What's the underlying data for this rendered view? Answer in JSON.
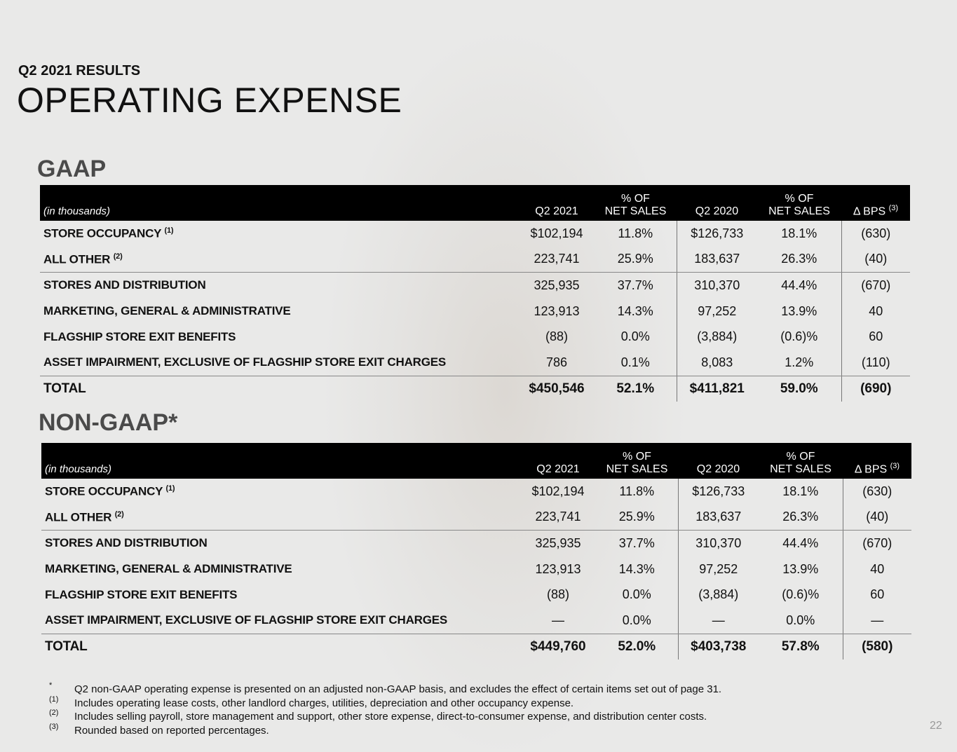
{
  "header": {
    "kicker": "Q2 2021 RESULTS",
    "title": "OPERATING EXPENSE"
  },
  "tables": [
    {
      "title": "GAAP",
      "columns": [
        {
          "label": [
            "(in thousands)"
          ]
        },
        {
          "label": [
            "Q2 2021"
          ]
        },
        {
          "label": [
            "% OF",
            "NET SALES"
          ]
        },
        {
          "label": [
            "Q2 2020"
          ]
        },
        {
          "label": [
            "% OF",
            "NET SALES"
          ]
        },
        {
          "label": [
            "Δ BPS"
          ],
          "note": "(3)"
        }
      ],
      "rows": [
        {
          "label": "STORE OCCUPANCY",
          "note": "(1)",
          "cells": [
            "$102,194",
            "11.8%",
            "$126,733",
            "18.1%",
            "(630)"
          ]
        },
        {
          "label": "ALL OTHER",
          "note": "(2)",
          "cells": [
            "223,741",
            "25.9%",
            "183,637",
            "26.3%",
            "(40)"
          ]
        },
        {
          "label": "STORES AND DISTRIBUTION",
          "cells": [
            "325,935",
            "37.7%",
            "310,370",
            "44.4%",
            "(670)"
          ]
        },
        {
          "label": "MARKETING, GENERAL & ADMINISTRATIVE",
          "cells": [
            "123,913",
            "14.3%",
            "97,252",
            "13.9%",
            "40"
          ]
        },
        {
          "label": "FLAGSHIP STORE EXIT BENEFITS",
          "cells": [
            "(88)",
            "0.0%",
            "(3,884)",
            "(0.6)%",
            "60"
          ]
        },
        {
          "label": "ASSET IMPAIRMENT, EXCLUSIVE OF FLAGSHIP STORE EXIT CHARGES",
          "cells": [
            "786",
            "0.1%",
            "8,083",
            "1.2%",
            "(110)"
          ]
        },
        {
          "label": "TOTAL",
          "cells": [
            "$450,546",
            "52.1%",
            "$411,821",
            "59.0%",
            "(690)"
          ]
        }
      ]
    },
    {
      "title": "NON-GAAP*",
      "columns": [
        {
          "label": [
            "(in thousands)"
          ]
        },
        {
          "label": [
            "Q2 2021"
          ]
        },
        {
          "label": [
            "% OF",
            "NET SALES"
          ]
        },
        {
          "label": [
            "Q2 2020"
          ]
        },
        {
          "label": [
            "% OF",
            "NET SALES"
          ]
        },
        {
          "label": [
            "Δ BPS"
          ],
          "note": "(3)"
        }
      ],
      "rows": [
        {
          "label": "STORE OCCUPANCY",
          "note": "(1)",
          "cells": [
            "$102,194",
            "11.8%",
            "$126,733",
            "18.1%",
            "(630)"
          ]
        },
        {
          "label": "ALL OTHER",
          "note": "(2)",
          "cells": [
            "223,741",
            "25.9%",
            "183,637",
            "26.3%",
            "(40)"
          ]
        },
        {
          "label": "STORES AND DISTRIBUTION",
          "cells": [
            "325,935",
            "37.7%",
            "310,370",
            "44.4%",
            "(670)"
          ]
        },
        {
          "label": "MARKETING, GENERAL & ADMINISTRATIVE",
          "cells": [
            "123,913",
            "14.3%",
            "97,252",
            "13.9%",
            "40"
          ]
        },
        {
          "label": "FLAGSHIP STORE EXIT BENEFITS",
          "cells": [
            "(88)",
            "0.0%",
            "(3,884)",
            "(0.6)%",
            "60"
          ]
        },
        {
          "label": "ASSET IMPAIRMENT, EXCLUSIVE OF FLAGSHIP STORE EXIT CHARGES",
          "cells": [
            "—",
            "0.0%",
            "—",
            "0.0%",
            "—"
          ]
        },
        {
          "label": "TOTAL",
          "cells": [
            "$449,760",
            "52.0%",
            "$403,738",
            "57.8%",
            "(580)"
          ]
        }
      ]
    }
  ],
  "footnotes": [
    {
      "mark": "*",
      "text": "Q2 non-GAAP operating expense is presented on an adjusted non-GAAP basis, and excludes the effect of certain items set out of page 31."
    },
    {
      "mark": "(1)",
      "text": "Includes operating lease costs, other landlord charges, utilities, depreciation and other occupancy expense."
    },
    {
      "mark": "(2)",
      "text": "Includes selling payroll, store management and support, other store expense, direct-to-consumer expense, and distribution center costs."
    },
    {
      "mark": "(3)",
      "text": "Rounded based on reported percentages."
    }
  ],
  "page_number": "22"
}
